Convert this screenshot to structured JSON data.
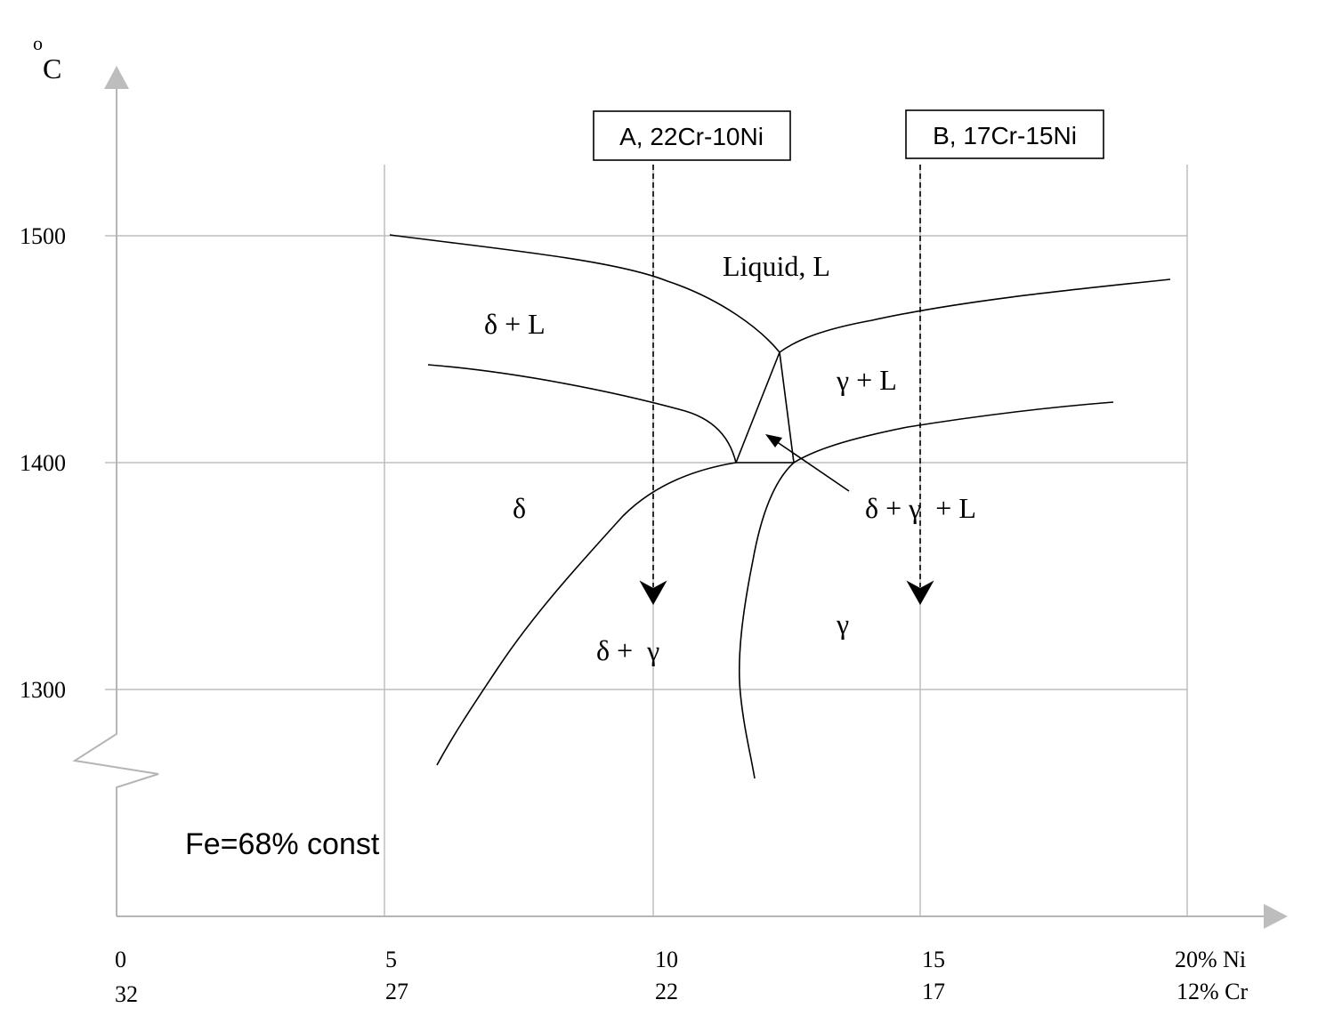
{
  "axes": {
    "y_unit_superscript": "o",
    "y_unit": "C",
    "y_ticks": [
      "1500",
      "1400",
      "1300"
    ],
    "x_ticks_ni": [
      "0",
      "5",
      "10",
      "15",
      "20% Ni"
    ],
    "x_ticks_cr": [
      "32",
      "27",
      "22",
      "17",
      "12% Cr"
    ]
  },
  "alloys": {
    "a_label": "A, 22Cr-10Ni",
    "b_label": "B, 17Cr-15Ni"
  },
  "regions": {
    "liquid": "Liquid, L",
    "delta_l": "δ + L",
    "gamma_l": "γ + L",
    "delta": "δ",
    "delta_gamma_l": "δ + γ  + L",
    "gamma": "γ",
    "delta_gamma": "δ +  γ"
  },
  "note": "Fe=68% const",
  "colors": {
    "grid": "#bdbdbd",
    "axis": "#b5b5b5",
    "line": "#000000"
  }
}
